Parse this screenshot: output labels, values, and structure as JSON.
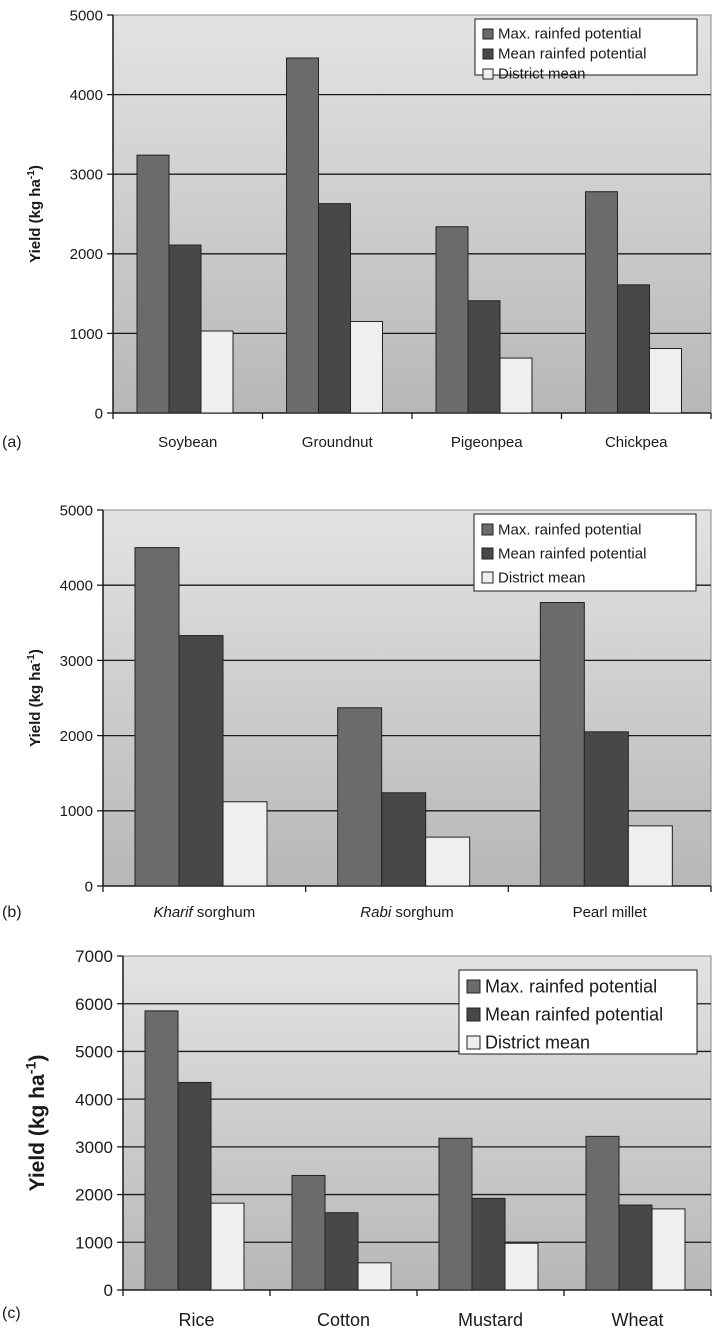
{
  "chart_data": [
    {
      "panel_label": "(a)",
      "type": "bar",
      "categories": [
        "Soybean",
        "Groundnut",
        "Pigeonpea",
        "Chickpea"
      ],
      "series": [
        {
          "name": "Max. rainfed potential",
          "values": [
            3240,
            4460,
            2340,
            2780
          ]
        },
        {
          "name": "Mean rainfed potential",
          "values": [
            2110,
            2630,
            1410,
            1610
          ]
        },
        {
          "name": "District mean",
          "values": [
            1030,
            1150,
            690,
            810
          ]
        }
      ],
      "ylabel": "Yield (kg ha-1)",
      "ylim": [
        0,
        5000
      ],
      "yticks": [
        "0",
        "1000",
        "2000",
        "3000",
        "4000",
        "5000"
      ],
      "legend_position": "top-right",
      "grid": true
    },
    {
      "panel_label": "(b)",
      "type": "bar",
      "categories": [
        {
          "italic": "Kharif",
          "rest": " sorghum"
        },
        {
          "italic": "Rabi",
          "rest": " sorghum"
        },
        {
          "italic": "",
          "rest": "Pearl millet"
        }
      ],
      "series": [
        {
          "name": "Max. rainfed potential",
          "values": [
            4500,
            2370,
            3770
          ]
        },
        {
          "name": "Mean rainfed potential",
          "values": [
            3330,
            1240,
            2050
          ]
        },
        {
          "name": "District mean",
          "values": [
            1120,
            650,
            800
          ]
        }
      ],
      "ylabel": "Yield (kg ha-1)",
      "ylim": [
        0,
        5000
      ],
      "yticks": [
        "0",
        "1000",
        "2000",
        "3000",
        "4000",
        "5000"
      ],
      "legend_position": "top-right",
      "grid": true
    },
    {
      "panel_label": "(c)",
      "type": "bar",
      "categories": [
        "Rice",
        "Cotton",
        "Mustard",
        "Wheat"
      ],
      "series": [
        {
          "name": "Max. rainfed potential",
          "values": [
            5850,
            2400,
            3180,
            3220
          ]
        },
        {
          "name": "Mean rainfed potential",
          "values": [
            4350,
            1620,
            1920,
            1780
          ]
        },
        {
          "name": "District mean",
          "values": [
            1820,
            570,
            980,
            1700
          ]
        }
      ],
      "ylabel": "Yield (kg ha-1)",
      "ylim": [
        0,
        7000
      ],
      "yticks": [
        "0",
        "1000",
        "2000",
        "3000",
        "4000",
        "5000",
        "6000",
        "7000"
      ],
      "legend_position": "top-right",
      "grid": true
    }
  ],
  "colors": {
    "series": [
      "#6b6b6b",
      "#484848",
      "#efefef"
    ],
    "plot_top": "#e3e3e3",
    "plot_bottom": "#b7b7b7",
    "bar_stroke": "#222222"
  }
}
